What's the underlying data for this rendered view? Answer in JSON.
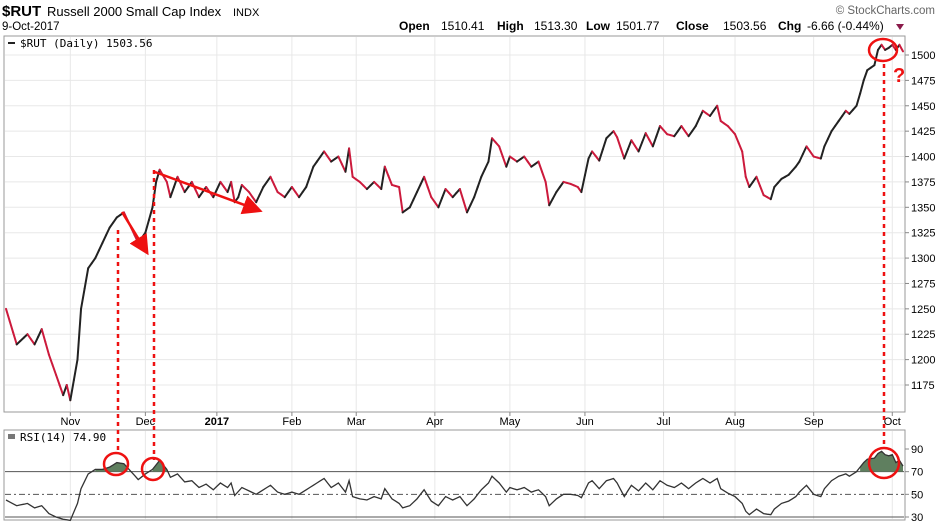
{
  "header": {
    "symbol": "$RUT",
    "name": "Russell 2000 Small Cap Index",
    "exchange": "INDX",
    "date": "9-Oct-2017",
    "watermark": "© StockCharts.com",
    "quote": {
      "open_label": "Open",
      "open": "1510.41",
      "high_label": "High",
      "high": "1513.30",
      "low_label": "Low",
      "low": "1501.77",
      "close_label": "Close",
      "close": "1503.56",
      "chg_label": "Chg",
      "chg": "-6.66 (-0.44%)"
    }
  },
  "colors": {
    "up": "#222222",
    "down": "#cc1a3c",
    "annotation": "#ee1111",
    "rsi_fill": "#5f7f5f",
    "grid": "#e8e8e8",
    "axis": "#888888"
  },
  "chart_data": [
    {
      "type": "line",
      "panel": "price",
      "legend": "$RUT (Daily) 1503.56",
      "y_ticks": [
        1175,
        1200,
        1225,
        1250,
        1275,
        1300,
        1325,
        1350,
        1375,
        1400,
        1425,
        1450,
        1475,
        1500
      ],
      "ylim": [
        1150,
        1525
      ],
      "month_labels": [
        "Nov",
        "Dec",
        "2017",
        "Feb",
        "Mar",
        "Apr",
        "May",
        "Jun",
        "Jul",
        "Aug",
        "Sep",
        "Oct"
      ],
      "month_positions": [
        18,
        39,
        59,
        80,
        98,
        120,
        141,
        162,
        184,
        204,
        226,
        248
      ],
      "bars": 252,
      "anchors": [
        [
          0,
          1250
        ],
        [
          3,
          1215
        ],
        [
          6,
          1225
        ],
        [
          8,
          1215
        ],
        [
          10,
          1230
        ],
        [
          12,
          1205
        ],
        [
          14,
          1185
        ],
        [
          16,
          1165
        ],
        [
          17,
          1175
        ],
        [
          18,
          1160
        ],
        [
          20,
          1200
        ],
        [
          21,
          1250
        ],
        [
          23,
          1290
        ],
        [
          25,
          1300
        ],
        [
          27,
          1315
        ],
        [
          29,
          1330
        ],
        [
          31,
          1340
        ],
        [
          33,
          1345
        ],
        [
          35,
          1330
        ],
        [
          37,
          1315
        ],
        [
          39,
          1325
        ],
        [
          41,
          1350
        ],
        [
          42,
          1375
        ],
        [
          43,
          1387
        ],
        [
          45,
          1375
        ],
        [
          46,
          1360
        ],
        [
          48,
          1380
        ],
        [
          50,
          1365
        ],
        [
          52,
          1375
        ],
        [
          54,
          1360
        ],
        [
          56,
          1370
        ],
        [
          58,
          1360
        ],
        [
          60,
          1375
        ],
        [
          62,
          1365
        ],
        [
          63,
          1375
        ],
        [
          64,
          1355
        ],
        [
          65,
          1360
        ],
        [
          66,
          1372
        ],
        [
          68,
          1365
        ],
        [
          70,
          1355
        ],
        [
          72,
          1370
        ],
        [
          74,
          1380
        ],
        [
          76,
          1365
        ],
        [
          78,
          1360
        ],
        [
          80,
          1370
        ],
        [
          82,
          1360
        ],
        [
          84,
          1370
        ],
        [
          86,
          1390
        ],
        [
          88,
          1400
        ],
        [
          89,
          1405
        ],
        [
          91,
          1395
        ],
        [
          93,
          1400
        ],
        [
          95,
          1385
        ],
        [
          96,
          1408
        ],
        [
          97,
          1380
        ],
        [
          99,
          1375
        ],
        [
          101,
          1368
        ],
        [
          103,
          1375
        ],
        [
          105,
          1368
        ],
        [
          106,
          1390
        ],
        [
          108,
          1372
        ],
        [
          110,
          1370
        ],
        [
          111,
          1345
        ],
        [
          113,
          1350
        ],
        [
          115,
          1365
        ],
        [
          117,
          1380
        ],
        [
          119,
          1360
        ],
        [
          121,
          1350
        ],
        [
          123,
          1368
        ],
        [
          125,
          1360
        ],
        [
          127,
          1368
        ],
        [
          129,
          1345
        ],
        [
          131,
          1360
        ],
        [
          133,
          1380
        ],
        [
          135,
          1395
        ],
        [
          136,
          1418
        ],
        [
          138,
          1410
        ],
        [
          140,
          1390
        ],
        [
          141,
          1400
        ],
        [
          143,
          1395
        ],
        [
          145,
          1400
        ],
        [
          147,
          1390
        ],
        [
          149,
          1395
        ],
        [
          151,
          1375
        ],
        [
          152,
          1352
        ],
        [
          154,
          1365
        ],
        [
          156,
          1375
        ],
        [
          158,
          1373
        ],
        [
          160,
          1370
        ],
        [
          161,
          1365
        ],
        [
          163,
          1398
        ],
        [
          164,
          1405
        ],
        [
          166,
          1396
        ],
        [
          168,
          1418
        ],
        [
          170,
          1425
        ],
        [
          171,
          1419
        ],
        [
          173,
          1398
        ],
        [
          175,
          1416
        ],
        [
          177,
          1405
        ],
        [
          179,
          1423
        ],
        [
          181,
          1410
        ],
        [
          183,
          1430
        ],
        [
          185,
          1422
        ],
        [
          187,
          1420
        ],
        [
          189,
          1430
        ],
        [
          191,
          1420
        ],
        [
          193,
          1430
        ],
        [
          195,
          1445
        ],
        [
          197,
          1440
        ],
        [
          199,
          1450
        ],
        [
          200,
          1435
        ],
        [
          202,
          1430
        ],
        [
          204,
          1422
        ],
        [
          206,
          1405
        ],
        [
          207,
          1380
        ],
        [
          208,
          1370
        ],
        [
          210,
          1380
        ],
        [
          212,
          1362
        ],
        [
          214,
          1358
        ],
        [
          215,
          1370
        ],
        [
          217,
          1378
        ],
        [
          219,
          1382
        ],
        [
          221,
          1390
        ],
        [
          222,
          1395
        ],
        [
          224,
          1410
        ],
        [
          226,
          1400
        ],
        [
          228,
          1398
        ],
        [
          229,
          1410
        ],
        [
          231,
          1425
        ],
        [
          233,
          1435
        ],
        [
          235,
          1445
        ],
        [
          236,
          1442
        ],
        [
          238,
          1450
        ],
        [
          239,
          1462
        ],
        [
          240,
          1475
        ],
        [
          241,
          1485
        ],
        [
          243,
          1490
        ],
        [
          244,
          1505
        ],
        [
          245,
          1510
        ],
        [
          246,
          1505
        ],
        [
          247,
          1507
        ],
        [
          248,
          1510
        ],
        [
          249,
          1505
        ],
        [
          250,
          1510
        ],
        [
          251,
          1503.56
        ]
      ]
    },
    {
      "type": "line",
      "panel": "rsi",
      "legend": "RSI(14) 74.90",
      "y_ticks": [
        30,
        50,
        70,
        90
      ],
      "ylim": [
        25,
        100
      ],
      "overbought": 70,
      "oversold": 30,
      "anchors": [
        [
          0,
          45
        ],
        [
          3,
          40
        ],
        [
          6,
          42
        ],
        [
          8,
          38
        ],
        [
          10,
          40
        ],
        [
          12,
          33
        ],
        [
          14,
          30
        ],
        [
          16,
          28
        ],
        [
          18,
          27
        ],
        [
          20,
          42
        ],
        [
          21,
          55
        ],
        [
          23,
          68
        ],
        [
          25,
          72
        ],
        [
          27,
          72
        ],
        [
          29,
          74
        ],
        [
          31,
          78
        ],
        [
          33,
          77
        ],
        [
          35,
          70
        ],
        [
          37,
          63
        ],
        [
          39,
          68
        ],
        [
          41,
          72
        ],
        [
          42,
          76
        ],
        [
          43,
          80
        ],
        [
          45,
          72
        ],
        [
          46,
          65
        ],
        [
          48,
          68
        ],
        [
          50,
          61
        ],
        [
          52,
          62
        ],
        [
          54,
          56
        ],
        [
          56,
          59
        ],
        [
          58,
          54
        ],
        [
          60,
          60
        ],
        [
          62,
          56
        ],
        [
          63,
          60
        ],
        [
          64,
          49
        ],
        [
          66,
          56
        ],
        [
          68,
          53
        ],
        [
          70,
          50
        ],
        [
          72,
          54
        ],
        [
          74,
          58
        ],
        [
          76,
          52
        ],
        [
          78,
          50
        ],
        [
          80,
          52
        ],
        [
          82,
          50
        ],
        [
          84,
          54
        ],
        [
          86,
          58
        ],
        [
          88,
          62
        ],
        [
          89,
          64
        ],
        [
          91,
          56
        ],
        [
          93,
          60
        ],
        [
          95,
          52
        ],
        [
          96,
          62
        ],
        [
          97,
          48
        ],
        [
          99,
          46
        ],
        [
          101,
          45
        ],
        [
          103,
          48
        ],
        [
          105,
          46
        ],
        [
          106,
          55
        ],
        [
          108,
          46
        ],
        [
          110,
          42
        ],
        [
          111,
          38
        ],
        [
          113,
          40
        ],
        [
          115,
          46
        ],
        [
          117,
          54
        ],
        [
          119,
          44
        ],
        [
          121,
          40
        ],
        [
          123,
          48
        ],
        [
          125,
          45
        ],
        [
          127,
          48
        ],
        [
          129,
          40
        ],
        [
          131,
          46
        ],
        [
          133,
          54
        ],
        [
          135,
          60
        ],
        [
          136,
          66
        ],
        [
          138,
          60
        ],
        [
          140,
          52
        ],
        [
          141,
          56
        ],
        [
          143,
          54
        ],
        [
          145,
          56
        ],
        [
          147,
          52
        ],
        [
          149,
          54
        ],
        [
          151,
          48
        ],
        [
          152,
          40
        ],
        [
          154,
          46
        ],
        [
          156,
          50
        ],
        [
          158,
          50
        ],
        [
          160,
          49
        ],
        [
          161,
          47
        ],
        [
          163,
          60
        ],
        [
          164,
          62
        ],
        [
          166,
          55
        ],
        [
          168,
          62
        ],
        [
          170,
          64
        ],
        [
          171,
          60
        ],
        [
          173,
          48
        ],
        [
          175,
          58
        ],
        [
          177,
          53
        ],
        [
          179,
          60
        ],
        [
          181,
          54
        ],
        [
          183,
          62
        ],
        [
          185,
          58
        ],
        [
          187,
          56
        ],
        [
          189,
          60
        ],
        [
          191,
          55
        ],
        [
          193,
          60
        ],
        [
          195,
          64
        ],
        [
          197,
          60
        ],
        [
          199,
          64
        ],
        [
          200,
          55
        ],
        [
          202,
          51
        ],
        [
          204,
          48
        ],
        [
          206,
          42
        ],
        [
          207,
          35
        ],
        [
          208,
          32
        ],
        [
          210,
          37
        ],
        [
          212,
          33
        ],
        [
          214,
          32
        ],
        [
          215,
          37
        ],
        [
          217,
          42
        ],
        [
          219,
          44
        ],
        [
          221,
          48
        ],
        [
          222,
          52
        ],
        [
          224,
          58
        ],
        [
          226,
          50
        ],
        [
          228,
          48
        ],
        [
          229,
          55
        ],
        [
          231,
          62
        ],
        [
          233,
          66
        ],
        [
          235,
          68
        ],
        [
          236,
          66
        ],
        [
          238,
          70
        ],
        [
          239,
          74
        ],
        [
          240,
          78
        ],
        [
          241,
          81
        ],
        [
          243,
          82
        ],
        [
          244,
          86
        ],
        [
          245,
          88
        ],
        [
          246,
          85
        ],
        [
          247,
          84
        ],
        [
          248,
          85
        ],
        [
          249,
          78
        ],
        [
          250,
          80
        ],
        [
          251,
          74.9
        ]
      ]
    }
  ],
  "annotations": {
    "question_mark": "?"
  }
}
